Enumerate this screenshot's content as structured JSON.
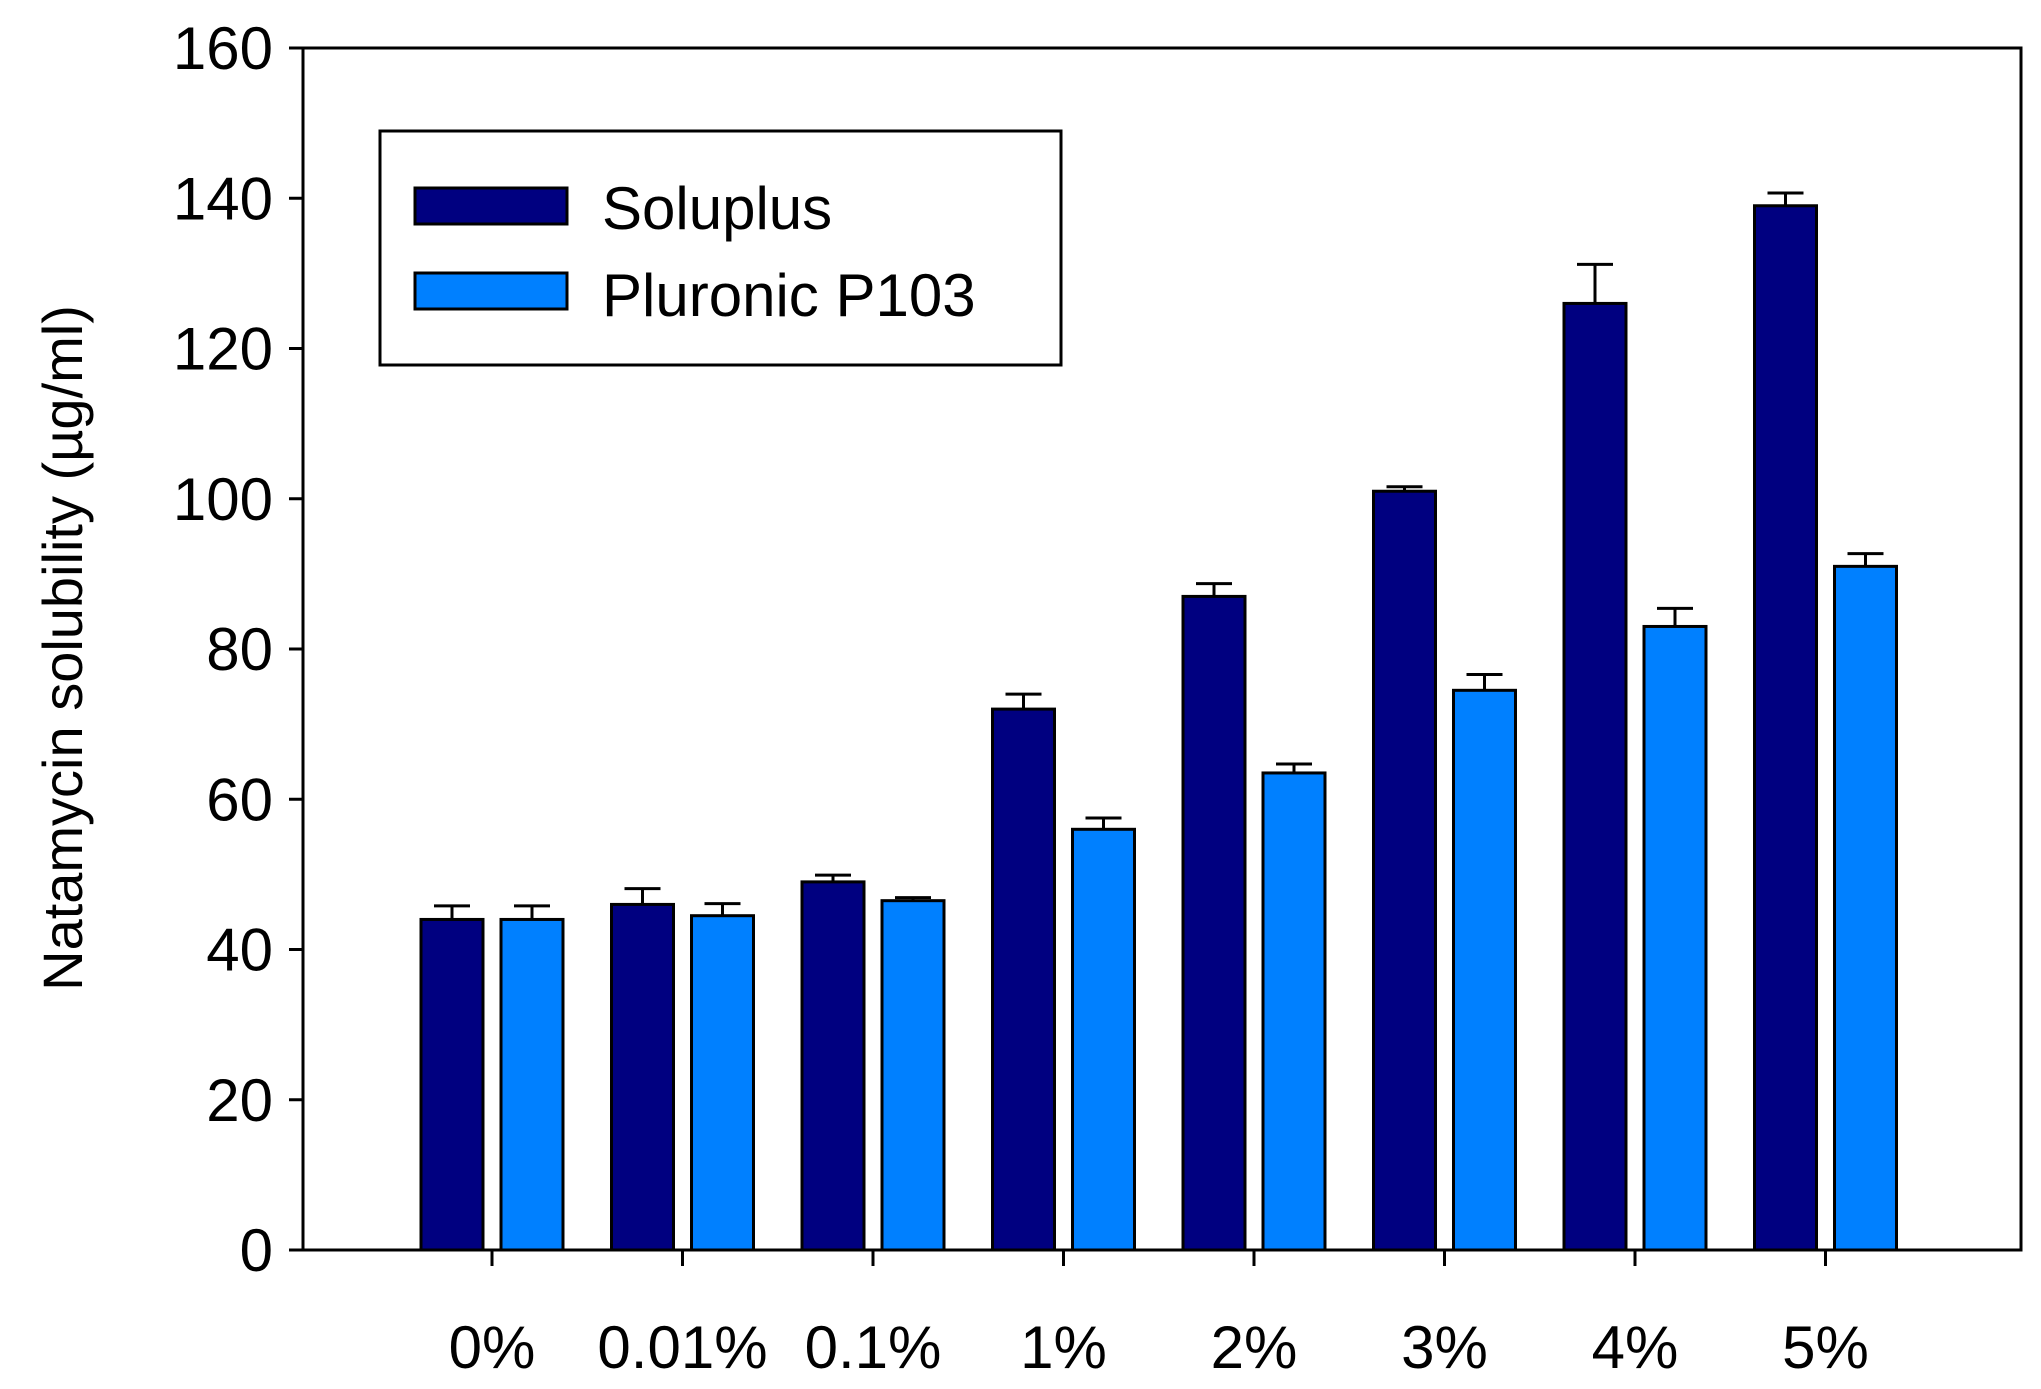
{
  "chart_data": {
    "type": "bar",
    "title": "",
    "xlabel": "",
    "ylabel": "Natamycin solubility (µg/ml)",
    "ylim": [
      0,
      160
    ],
    "yticks": [
      0,
      20,
      40,
      60,
      80,
      100,
      120,
      140,
      160
    ],
    "categories": [
      "0%",
      "0.01%",
      "0.1%",
      "1%",
      "2%",
      "3%",
      "4%",
      "5%"
    ],
    "series": [
      {
        "name": "Soluplus",
        "color": "#000080",
        "values": [
          44,
          46,
          49,
          72,
          87,
          101,
          126,
          139
        ],
        "errors": [
          1.8,
          2.1,
          0.9,
          2.0,
          1.7,
          0.6,
          5.2,
          1.7
        ]
      },
      {
        "name": "Pluronic P103",
        "color": "#0080FF",
        "values": [
          44,
          44.5,
          46.5,
          56,
          63.5,
          74.5,
          83,
          91
        ],
        "errors": [
          1.8,
          1.6,
          0.4,
          1.5,
          1.2,
          2.1,
          2.4,
          1.7
        ]
      }
    ],
    "legend": {
      "position": "top-left"
    },
    "grid": false
  }
}
